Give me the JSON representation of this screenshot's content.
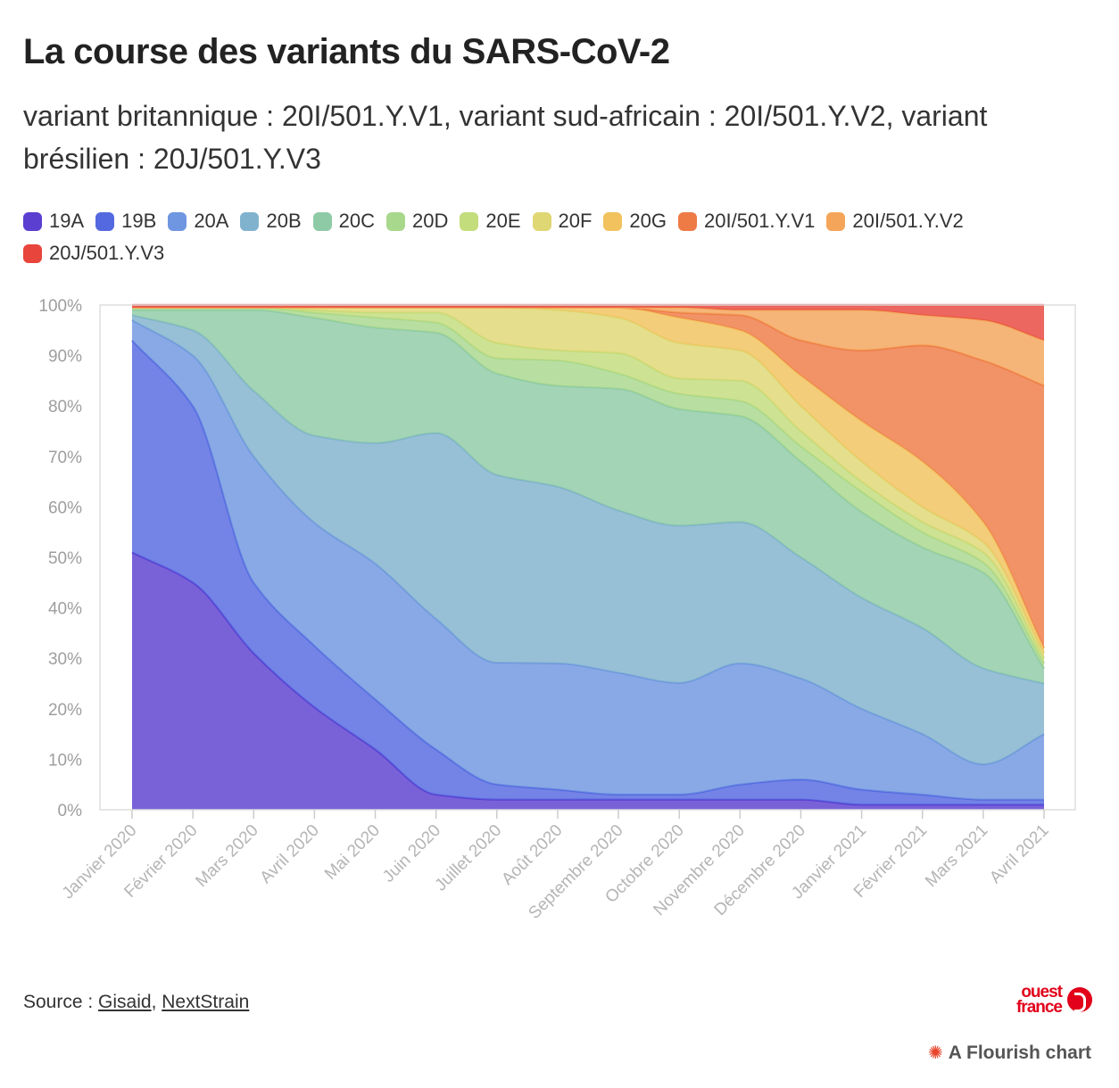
{
  "chart_data": {
    "type": "area",
    "stacking": "percent",
    "title": "La course des variants du SARS-CoV-2",
    "subtitle": "variant britannique : 20I/501.Y.V1, variant sud-africain : 20I/501.Y.V2, variant brésilien : 20J/501.Y.V3",
    "x": [
      "Janvier 2020",
      "Février 2020",
      "Mars 2020",
      "Avril 2020",
      "Mai 2020",
      "Juin 2020",
      "Juillet 2020",
      "Août 2020",
      "Septembre 2020",
      "Octobre 2020",
      "Novembre 2020",
      "Décembre 2020",
      "Janvier 2021",
      "Février 2021",
      "Mars 2021",
      "Avril 2021"
    ],
    "y_ticks": [
      "0%",
      "10%",
      "20%",
      "30%",
      "40%",
      "50%",
      "60%",
      "70%",
      "80%",
      "90%",
      "100%"
    ],
    "ylim": [
      0,
      100
    ],
    "grid": false,
    "legend_position": "top",
    "series": [
      {
        "name": "19A",
        "color": "#5b3fd0",
        "values": [
          51,
          45,
          31,
          20,
          12,
          3,
          2,
          2,
          2,
          2,
          2,
          2,
          1,
          1,
          1,
          1
        ]
      },
      {
        "name": "19B",
        "color": "#5468e0",
        "values": [
          42,
          35,
          14,
          12,
          10,
          9,
          3,
          2,
          1,
          1,
          3,
          4,
          3,
          2,
          1,
          1
        ]
      },
      {
        "name": "20A",
        "color": "#6f96e0",
        "values": [
          4,
          10,
          25,
          24,
          27,
          26,
          24,
          25,
          24,
          22,
          24,
          20,
          16,
          12,
          7,
          13
        ]
      },
      {
        "name": "20B",
        "color": "#80b2ce",
        "values": [
          1,
          5,
          13,
          17,
          24,
          37,
          37,
          35,
          32,
          31,
          28,
          24,
          22,
          21,
          19,
          10
        ]
      },
      {
        "name": "20C",
        "color": "#8fcaa6",
        "values": [
          1,
          4,
          16,
          23,
          23,
          20,
          20,
          20,
          24,
          23,
          21,
          19,
          17,
          16,
          19,
          3
        ]
      },
      {
        "name": "20D",
        "color": "#a8d88c",
        "values": [
          0.5,
          0.5,
          0.5,
          1,
          2,
          2,
          3,
          5,
          3,
          3,
          3,
          3,
          4,
          3,
          2,
          1
        ]
      },
      {
        "name": "20E",
        "color": "#c3dc7c",
        "values": [
          0,
          0,
          0,
          0.5,
          1,
          2,
          3,
          2,
          4,
          3,
          4,
          3,
          2,
          2,
          2,
          1
        ]
      },
      {
        "name": "20F",
        "color": "#dfd773",
        "values": [
          0,
          0,
          0,
          0.5,
          1,
          1,
          7,
          8,
          7,
          7,
          6,
          5,
          4,
          3,
          2,
          1
        ]
      },
      {
        "name": "20G",
        "color": "#f2c25e",
        "values": [
          0,
          0,
          0,
          0,
          0,
          0,
          0,
          0.5,
          2,
          5,
          4,
          6,
          8,
          9,
          4,
          1
        ]
      },
      {
        "name": "20I/501.Y.V1",
        "color": "#ee7a46",
        "values": [
          0,
          0,
          0,
          0,
          0,
          0,
          0,
          0,
          0,
          1,
          3,
          7,
          14,
          23,
          32,
          52
        ]
      },
      {
        "name": "20I/501.Y.V2",
        "color": "#f4a55a",
        "values": [
          0,
          0,
          0,
          0,
          0,
          0,
          0,
          0,
          0,
          1,
          1,
          6,
          8,
          6,
          8,
          9
        ]
      },
      {
        "name": "20J/501.Y.V3",
        "color": "#e8453c",
        "values": [
          0.5,
          0.5,
          0.5,
          0.5,
          0.5,
          0.5,
          0.5,
          0.5,
          0.5,
          0.5,
          1,
          1,
          1,
          2,
          3,
          7
        ]
      }
    ]
  },
  "footer": {
    "source_prefix": "Source : ",
    "source_link1": "Gisaid",
    "source_sep": ", ",
    "source_link2": "NextStrain",
    "logo_line1": "ouest",
    "logo_line2": "france",
    "flourish_label": "A Flourish chart",
    "flourish_icon": "burst-icon"
  }
}
